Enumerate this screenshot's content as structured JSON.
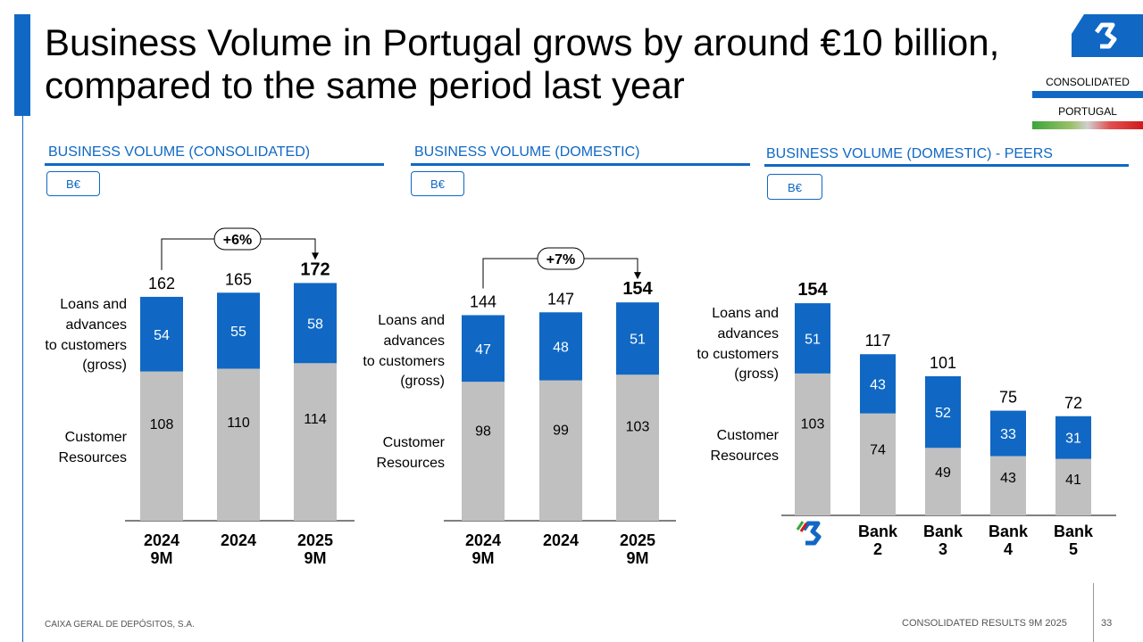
{
  "title": "Business Volume in Portugal grows by around €10 billion, compared to the same period last year",
  "tags": {
    "consolidated": "CONSOLIDATED",
    "portugal": "PORTUGAL"
  },
  "colors": {
    "accent": "#1068c4",
    "loans": "#1068c4",
    "resources": "#c0c0c0"
  },
  "footer": {
    "company": "CAIXA GERAL DE DEPÓSITOS, S.A.",
    "report": "CONSOLIDATED RESULTS 9M 2025",
    "page": "33"
  },
  "chart_data": [
    {
      "type": "bar",
      "stacked": true,
      "title": "BUSINESS VOLUME (CONSOLIDATED)",
      "unit": "B€",
      "categories": [
        "2024\n9M",
        "2024",
        "2025\n9M"
      ],
      "series": [
        {
          "name": "Customer Resources",
          "values": [
            108,
            110,
            114
          ]
        },
        {
          "name": "Loans and advances to customers (gross)",
          "values": [
            54,
            55,
            58
          ]
        }
      ],
      "totals": [
        "162",
        "165",
        "172"
      ],
      "growth": "+6%",
      "labels": {
        "loans": "Loans and advances to customers (gross)",
        "resources": "Customer Resources"
      }
    },
    {
      "type": "bar",
      "stacked": true,
      "title": "BUSINESS VOLUME (DOMESTIC)",
      "unit": "B€",
      "categories": [
        "2024\n9M",
        "2024",
        "2025\n9M"
      ],
      "series": [
        {
          "name": "Customer Resources",
          "values": [
            98,
            99,
            103
          ]
        },
        {
          "name": "Loans and advances to customers (gross)",
          "values": [
            47,
            48,
            51
          ]
        }
      ],
      "totals": [
        "144",
        "147",
        "154"
      ],
      "growth": "+7%",
      "labels": {
        "loans": "Loans and advances to customers (gross)",
        "resources": "Customer Resources"
      }
    },
    {
      "type": "bar",
      "stacked": true,
      "title": "BUSINESS VOLUME (DOMESTIC) - PEERS",
      "unit": "B€",
      "categories": [
        "",
        "Bank\n2",
        "Bank\n3",
        "Bank\n4",
        "Bank\n5"
      ],
      "first_category_icon": "cgd-logo-icon",
      "series": [
        {
          "name": "Customer Resources",
          "values": [
            103,
            74,
            49,
            43,
            41
          ]
        },
        {
          "name": "Loans and advances to customers (gross)",
          "values": [
            51,
            43,
            52,
            33,
            31
          ]
        }
      ],
      "totals": [
        "154",
        "117",
        "101",
        "75",
        "72"
      ],
      "labels": {
        "loans": "Loans and advances to customers (gross)",
        "resources": "Customer Resources"
      }
    }
  ]
}
